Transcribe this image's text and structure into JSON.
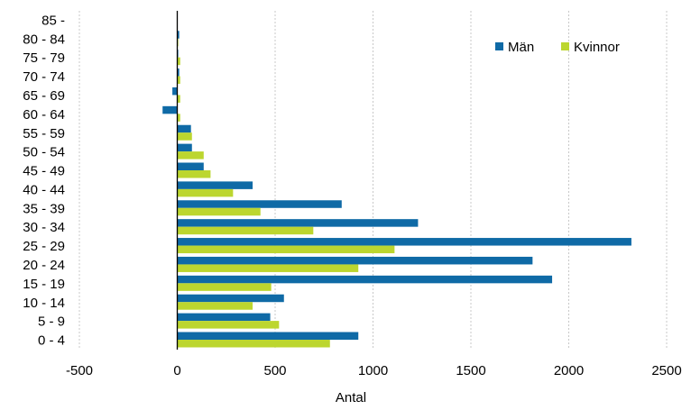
{
  "chart_data": {
    "type": "bar",
    "orientation": "horizontal",
    "title": "",
    "xlabel": "Antal",
    "ylabel": "",
    "xlim": [
      -500,
      2500
    ],
    "xticks": [
      "-500",
      "0",
      "500",
      "1000",
      "1500",
      "2000",
      "2500"
    ],
    "categories": [
      "0 - 4",
      "5 - 9",
      "10 - 14",
      "15 - 19",
      "20 - 24",
      "25 - 29",
      "30 - 34",
      "35 - 39",
      "40 - 44",
      "45 - 49",
      "50 - 54",
      "55 - 59",
      "60 - 64",
      "65 - 69",
      "70 - 74",
      "75 - 79",
      "80 - 84",
      "85 -"
    ],
    "series": [
      {
        "name": "Män",
        "color": "#0f6aa6",
        "values": [
          925,
          475,
          545,
          1915,
          1815,
          2320,
          1230,
          840,
          385,
          135,
          75,
          70,
          -75,
          -25,
          10,
          5,
          10,
          0
        ]
      },
      {
        "name": "Kvinnor",
        "color": "#bcd62f",
        "values": [
          780,
          520,
          385,
          480,
          925,
          1110,
          695,
          425,
          285,
          170,
          135,
          75,
          15,
          15,
          15,
          15,
          5,
          0
        ]
      }
    ],
    "grid": "vertical",
    "legend_position": "top-right"
  }
}
